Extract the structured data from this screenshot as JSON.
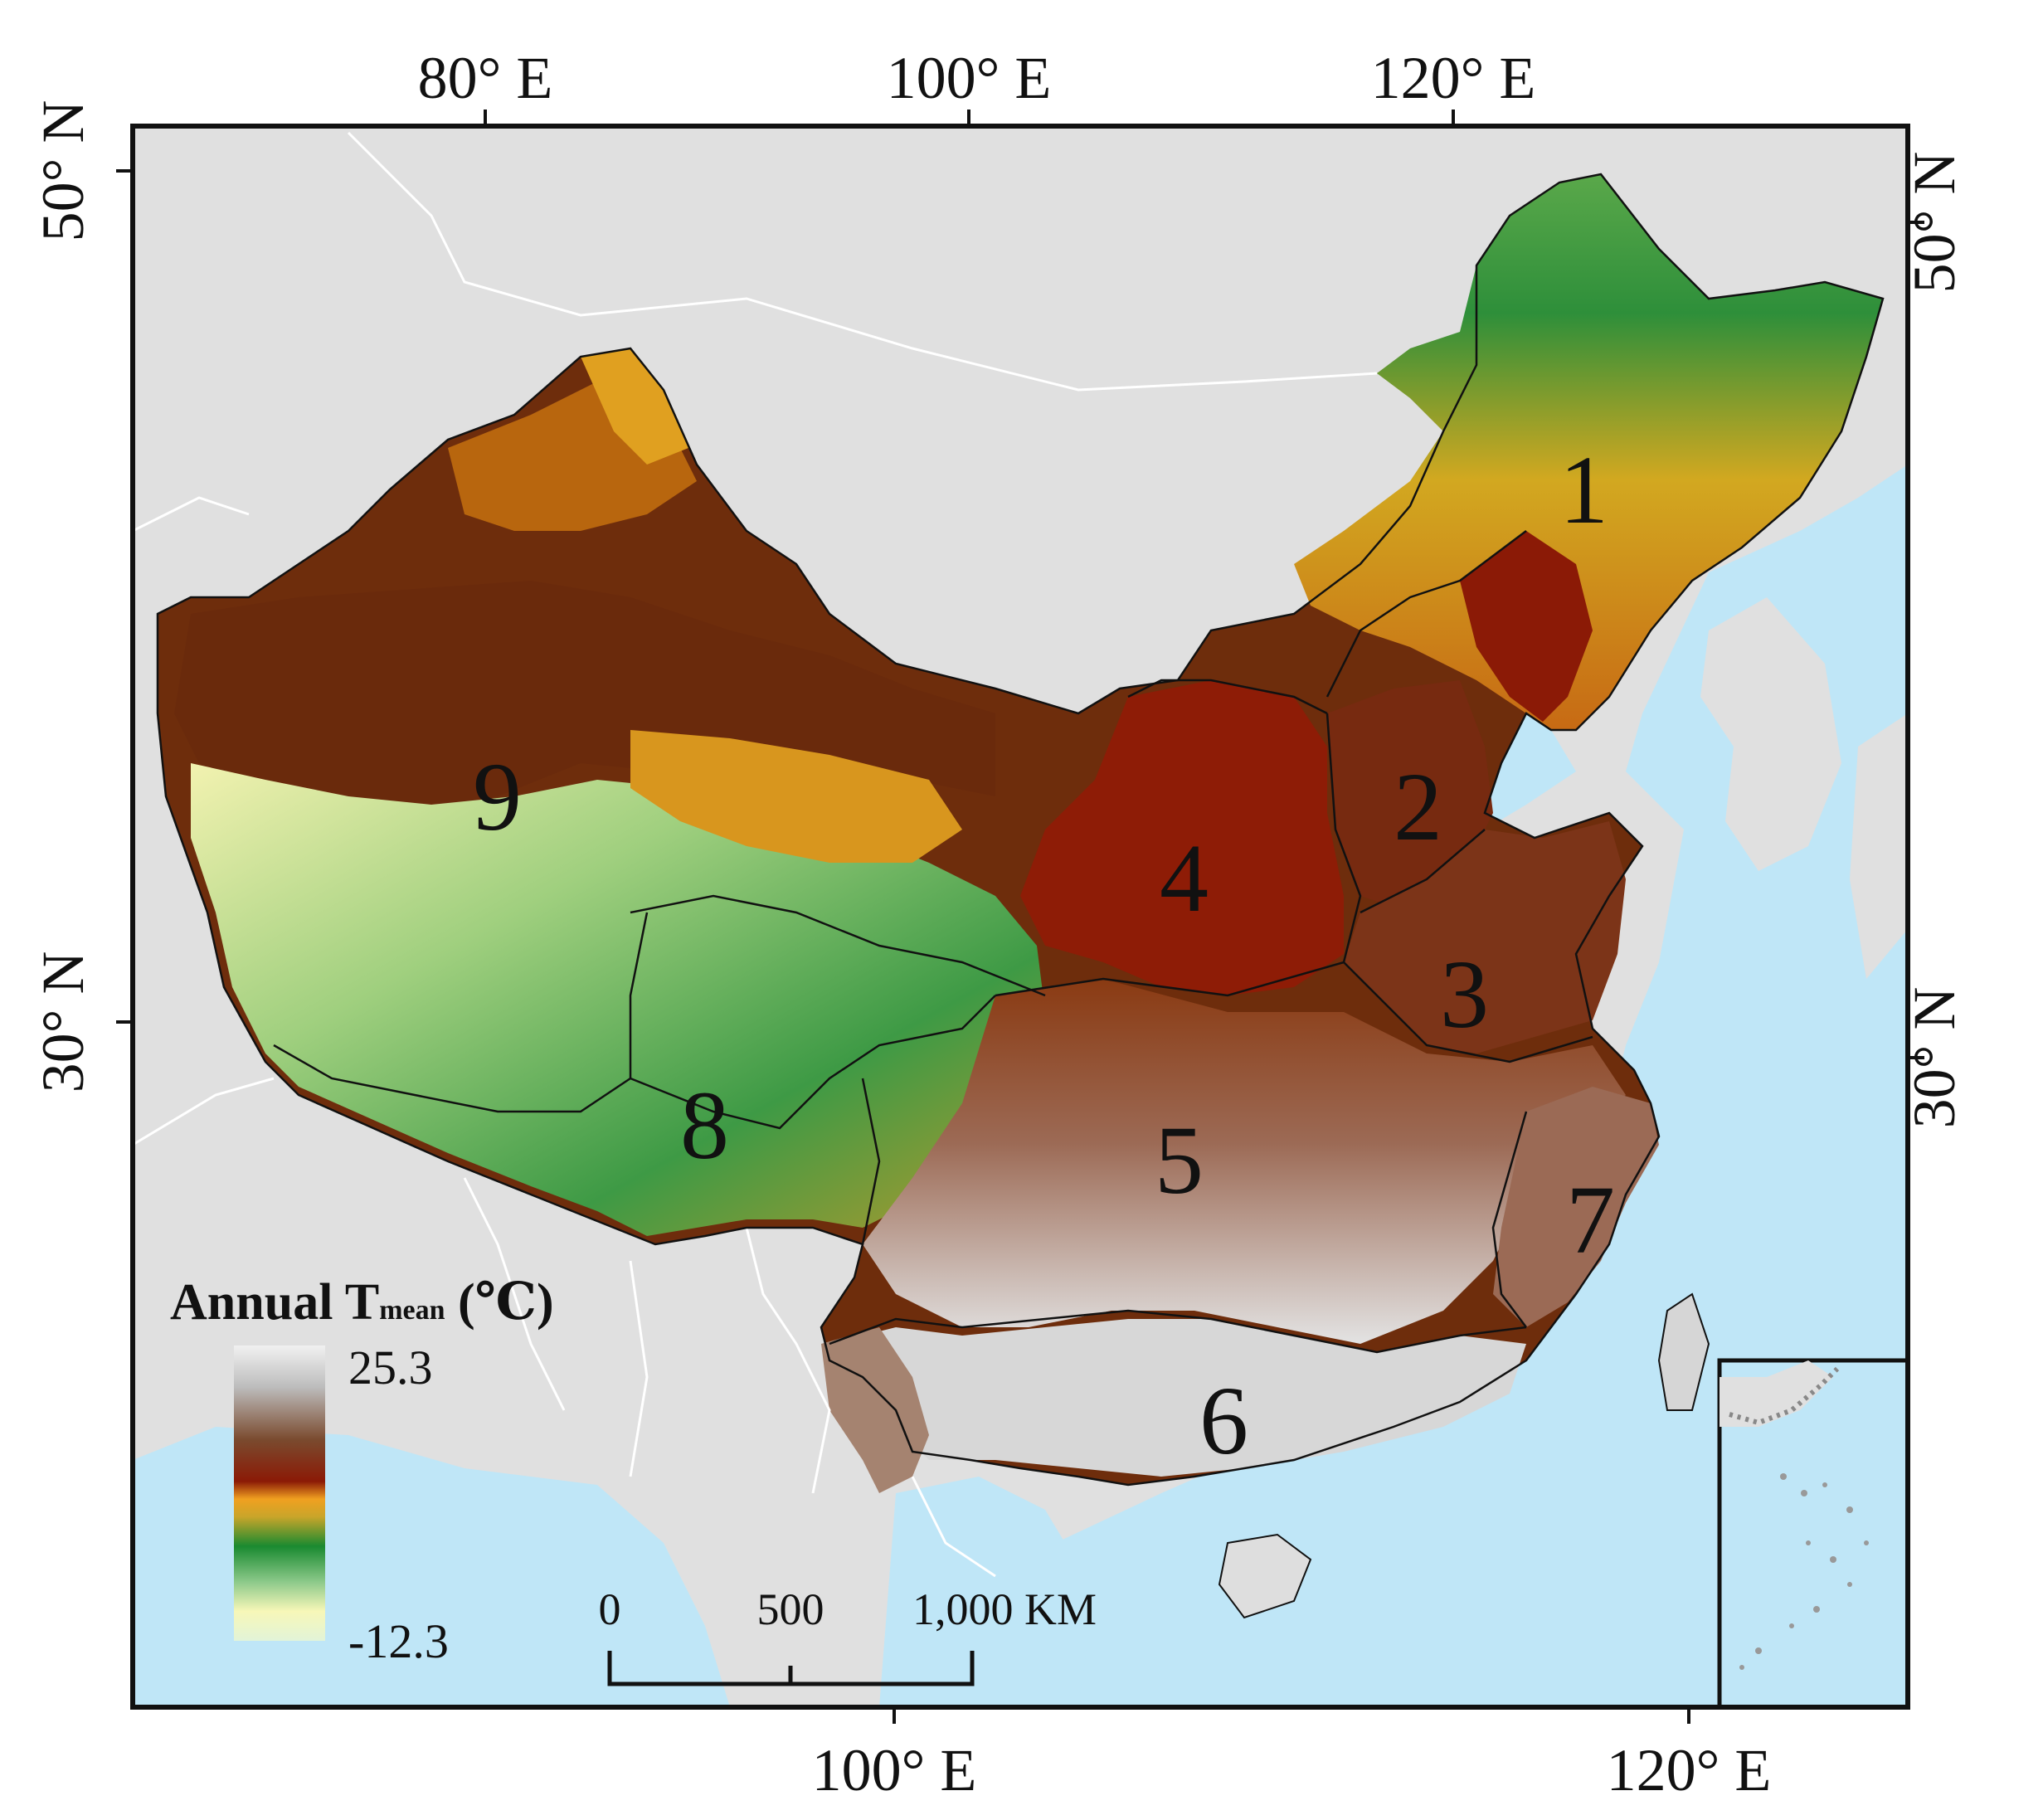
{
  "map": {
    "top_ticks": [
      "80° E",
      "100° E",
      "120° E"
    ],
    "bottom_ticks": [
      "100° E",
      "120° E"
    ],
    "left_ticks": [
      "50° N",
      "30° N"
    ],
    "right_ticks": [
      "50° N",
      "30° N"
    ],
    "regions": [
      "1",
      "2",
      "3",
      "4",
      "5",
      "6",
      "7",
      "8",
      "9"
    ],
    "colors": {
      "ocean": "#bfe6f7",
      "land": "#e0e0e0",
      "border_white": "#ffffff",
      "frame": "#111111"
    }
  },
  "legend": {
    "title_main": "Annual T",
    "title_sub": "mean",
    "title_unit": " (℃)",
    "max_label": "25.3",
    "min_label": "-12.3",
    "color_stops": [
      "#f1f1f1",
      "#bdbdbd",
      "#7a4a2e",
      "#8b1a06",
      "#f0a020",
      "#c9a52a",
      "#1a8a30",
      "#8cc98a",
      "#f7f7b8",
      "#e2f4d8"
    ]
  },
  "scale_bar": {
    "labels": [
      "0",
      "500",
      "1,000 KM"
    ]
  }
}
